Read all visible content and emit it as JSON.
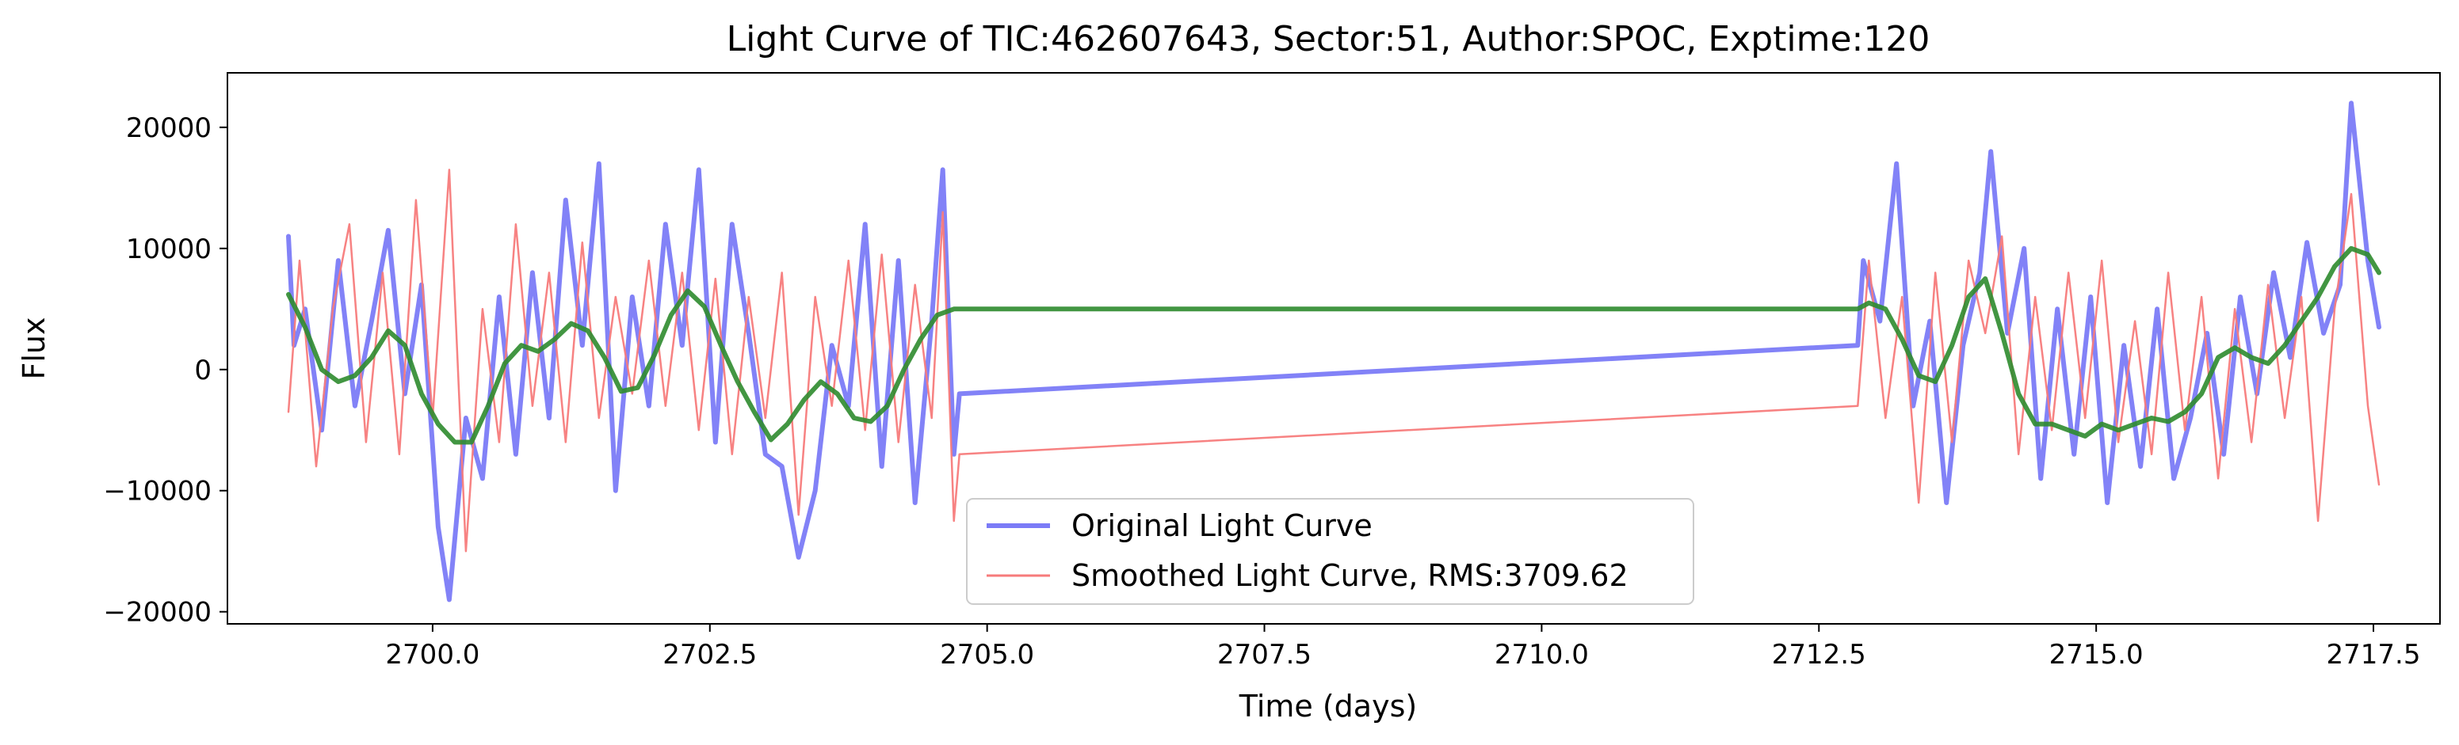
{
  "chart_data": {
    "type": "line",
    "title": "Light Curve of TIC:462607643, Sector:51, Author:SPOC, Exptime:120",
    "xlabel": "Time (days)",
    "ylabel": "Flux",
    "xlim": [
      2698.15,
      2718.1
    ],
    "ylim": [
      -21000,
      24500
    ],
    "xticks": [
      2700.0,
      2702.5,
      2705.0,
      2707.5,
      2710.0,
      2712.5,
      2715.0,
      2717.5
    ],
    "xtick_labels": [
      "2700.0",
      "2702.5",
      "2705.0",
      "2707.5",
      "2710.0",
      "2712.5",
      "2715.0",
      "2717.5"
    ],
    "yticks": [
      -20000,
      -10000,
      0,
      10000,
      20000
    ],
    "ytick_labels": [
      "−20000",
      "−10000",
      "0",
      "10000",
      "20000"
    ],
    "grid": false,
    "legend_position": "lower-center",
    "series": [
      {
        "name": "Original Light Curve",
        "color": "#7b7bf7",
        "x": [
          2698.7,
          2698.75,
          2698.85,
          2699.0,
          2699.15,
          2699.3,
          2699.45,
          2699.6,
          2699.75,
          2699.9,
          2700.05,
          2700.15,
          2700.3,
          2700.45,
          2700.6,
          2700.75,
          2700.9,
          2701.05,
          2701.2,
          2701.35,
          2701.5,
          2701.65,
          2701.8,
          2701.95,
          2702.1,
          2702.25,
          2702.4,
          2702.55,
          2702.7,
          2702.85,
          2703.0,
          2703.15,
          2703.3,
          2703.45,
          2703.6,
          2703.75,
          2703.9,
          2704.05,
          2704.2,
          2704.35,
          2704.5,
          2704.6,
          2704.7,
          2704.75,
          2712.85,
          2712.9,
          2713.05,
          2713.2,
          2713.35,
          2713.5,
          2713.65,
          2713.8,
          2713.95,
          2714.05,
          2714.2,
          2714.35,
          2714.5,
          2714.65,
          2714.8,
          2714.95,
          2715.1,
          2715.25,
          2715.4,
          2715.55,
          2715.7,
          2715.85,
          2716.0,
          2716.15,
          2716.3,
          2716.45,
          2716.6,
          2716.75,
          2716.9,
          2717.05,
          2717.2,
          2717.3,
          2717.45,
          2717.55
        ],
        "y": [
          11000,
          2000,
          5000,
          -5000,
          9000,
          -3000,
          4000,
          11500,
          -2000,
          7000,
          -13000,
          -19000,
          -4000,
          -9000,
          6000,
          -7000,
          8000,
          -4000,
          14000,
          2000,
          17000,
          -10000,
          6000,
          -3000,
          12000,
          2000,
          16500,
          -6000,
          12000,
          3000,
          -7000,
          -8000,
          -15500,
          -10000,
          2000,
          -3000,
          12000,
          -8000,
          9000,
          -11000,
          4000,
          16500,
          -7000,
          -2000,
          2000,
          9000,
          4000,
          17000,
          -3000,
          4000,
          -11000,
          2000,
          8000,
          18000,
          3000,
          10000,
          -9000,
          5000,
          -7000,
          6000,
          -11000,
          2000,
          -8000,
          5000,
          -9000,
          -4000,
          3000,
          -7000,
          6000,
          -2000,
          8000,
          1000,
          10500,
          3000,
          7000,
          22000,
          9000,
          3500
        ]
      },
      {
        "name": "Smoothed Light Curve, RMS:3709.62",
        "color": "#f77b7b",
        "x": [
          2698.7,
          2698.8,
          2698.95,
          2699.1,
          2699.25,
          2699.4,
          2699.55,
          2699.7,
          2699.85,
          2700.0,
          2700.15,
          2700.3,
          2700.45,
          2700.6,
          2700.75,
          2700.9,
          2701.05,
          2701.2,
          2701.35,
          2701.5,
          2701.65,
          2701.8,
          2701.95,
          2702.1,
          2702.25,
          2702.4,
          2702.55,
          2702.7,
          2702.85,
          2703.0,
          2703.15,
          2703.3,
          2703.45,
          2703.6,
          2703.75,
          2703.9,
          2704.05,
          2704.2,
          2704.35,
          2704.5,
          2704.6,
          2704.7,
          2704.75,
          2712.85,
          2712.95,
          2713.1,
          2713.25,
          2713.4,
          2713.55,
          2713.7,
          2713.85,
          2714.0,
          2714.15,
          2714.3,
          2714.45,
          2714.6,
          2714.75,
          2714.9,
          2715.05,
          2715.2,
          2715.35,
          2715.5,
          2715.65,
          2715.8,
          2715.95,
          2716.1,
          2716.25,
          2716.4,
          2716.55,
          2716.7,
          2716.85,
          2717.0,
          2717.15,
          2717.3,
          2717.45,
          2717.55
        ],
        "y": [
          -3500,
          9000,
          -8000,
          5000,
          12000,
          -6000,
          8000,
          -7000,
          14000,
          -4000,
          16500,
          -15000,
          5000,
          -6000,
          12000,
          -3000,
          8000,
          -6000,
          10500,
          -4000,
          6000,
          -2000,
          9000,
          -3000,
          8000,
          -5000,
          7500,
          -7000,
          6000,
          -4000,
          8000,
          -12000,
          6000,
          -3000,
          9000,
          -5000,
          9500,
          -6000,
          7000,
          -4000,
          13000,
          -12500,
          -7000,
          -3000,
          9000,
          -4000,
          6000,
          -11000,
          8000,
          -6000,
          9000,
          3000,
          11000,
          -7000,
          6000,
          -5000,
          8000,
          -4000,
          9000,
          -6000,
          4000,
          -7000,
          8000,
          -5000,
          6000,
          -9000,
          5000,
          -6000,
          7000,
          -4000,
          6000,
          -12500,
          5000,
          14500,
          -3000,
          -9500
        ]
      },
      {
        "name": "",
        "color": "#2e8b2e",
        "x": [
          2698.7,
          2698.85,
          2699.0,
          2699.15,
          2699.3,
          2699.45,
          2699.6,
          2699.75,
          2699.9,
          2700.05,
          2700.2,
          2700.35,
          2700.5,
          2700.65,
          2700.8,
          2700.95,
          2701.1,
          2701.25,
          2701.4,
          2701.55,
          2701.7,
          2701.85,
          2702.0,
          2702.15,
          2702.3,
          2702.45,
          2702.6,
          2702.75,
          2702.9,
          2703.05,
          2703.2,
          2703.35,
          2703.5,
          2703.65,
          2703.8,
          2703.95,
          2704.1,
          2704.25,
          2704.4,
          2704.55,
          2704.7,
          2704.8,
          2712.85,
          2712.95,
          2713.1,
          2713.25,
          2713.4,
          2713.55,
          2713.7,
          2713.85,
          2714.0,
          2714.15,
          2714.3,
          2714.45,
          2714.6,
          2714.75,
          2714.9,
          2715.05,
          2715.2,
          2715.35,
          2715.5,
          2715.65,
          2715.8,
          2715.95,
          2716.1,
          2716.25,
          2716.4,
          2716.55,
          2716.7,
          2716.85,
          2717.0,
          2717.15,
          2717.3,
          2717.45,
          2717.55
        ],
        "y": [
          6200,
          3500,
          0,
          -1000,
          -500,
          1000,
          3200,
          2000,
          -2000,
          -4500,
          -6000,
          -6000,
          -3000,
          500,
          2000,
          1500,
          2500,
          3800,
          3200,
          1000,
          -1800,
          -1500,
          1200,
          4500,
          6500,
          5200,
          2000,
          -1000,
          -3500,
          -5800,
          -4500,
          -2500,
          -1000,
          -2000,
          -4000,
          -4300,
          -3000,
          0,
          2500,
          4500,
          5000,
          5000,
          5000,
          5500,
          5000,
          2500,
          -500,
          -1000,
          2000,
          6000,
          7500,
          3000,
          -2000,
          -4500,
          -4500,
          -5000,
          -5500,
          -4500,
          -5000,
          -4500,
          -4000,
          -4300,
          -3500,
          -2000,
          1000,
          1800,
          1000,
          500,
          2000,
          4000,
          6000,
          8500,
          10000,
          9500,
          8000
        ]
      }
    ],
    "legend": [
      "Original Light Curve",
      "Smoothed Light Curve, RMS:3709.62"
    ]
  }
}
